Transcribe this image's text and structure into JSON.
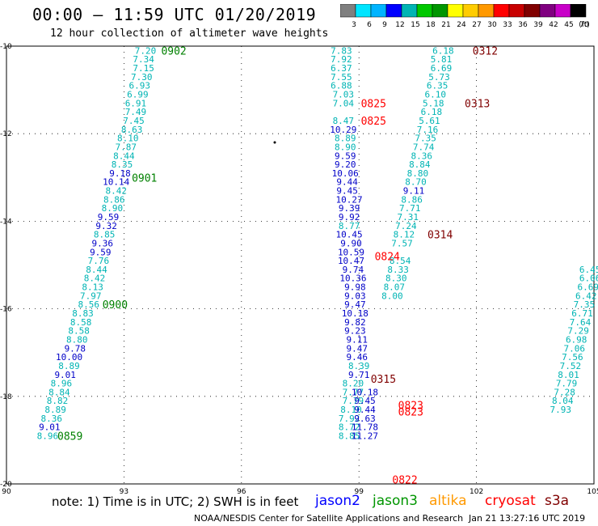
{
  "title": "00:00 – 11:59 UTC 01/20/2019",
  "subtitle": "12 hour collection of altimeter wave heights",
  "colorbar": {
    "labels": [
      "3",
      "6",
      "9",
      "12",
      "15",
      "18",
      "21",
      "24",
      "27",
      "30",
      "33",
      "36",
      "39",
      "42",
      "45",
      "70",
      "(ft)"
    ],
    "colors": [
      "#7f7f7f",
      "#00e5ff",
      "#00b4ff",
      "#0000ff",
      "#00b4b4",
      "#00c800",
      "#009600",
      "#ffff00",
      "#ffcc00",
      "#ff9900",
      "#ff0000",
      "#c80000",
      "#800000",
      "#800080",
      "#c800c8",
      "#000000"
    ]
  },
  "axes": {
    "lon_ticks": [
      "90",
      "93",
      "96",
      "99",
      "102",
      "105"
    ],
    "lat_ticks": [
      "-10",
      "-12",
      "-14",
      "-16",
      "-18",
      "-20"
    ],
    "lon_range": [
      90,
      105
    ],
    "lat_range": [
      -20,
      -10
    ]
  },
  "tracks": [
    {
      "satellite": "jason2",
      "passes": [
        {
          "time": "0902",
          "time_color": "#008000",
          "lat_start": -10.1,
          "lon_start": 93.6,
          "lat_end": -19.0,
          "lon_end": 90.4,
          "values": [
            "7.20",
            "7.34",
            "7.15",
            "7.30",
            "6.93",
            "6.99",
            "6.91",
            "7.49",
            "7.45",
            "8.63",
            "8.10",
            "7.87",
            "8.44",
            "8.35",
            "9.18",
            "10.14",
            "8.42",
            "8.86",
            "8.90",
            "9.59",
            "9.32",
            "8.85",
            "9.36",
            "9.59",
            "7.76",
            "8.44",
            "8.42",
            "8.13",
            "7.97",
            "8.56",
            "8.83",
            "8.58",
            "8.58",
            "8.80",
            "8.58",
            "8.89",
            "9.78",
            "10.00",
            "8.89",
            "9.01",
            "8.96",
            "8.90",
            "8.84",
            "8.82",
            "8.89",
            "8.43",
            "8.36",
            "9.01",
            "8.94",
            "8.96"
          ]
        },
        {
          "time": "0901",
          "time_color": "#008000"
        },
        {
          "time": "0900",
          "time_color": "#008000"
        },
        {
          "time": "0859",
          "time_color": "#008000"
        }
      ]
    },
    {
      "satellite": "jason3",
      "passes": [
        {
          "time": "0825",
          "time_color": "#ff0000"
        },
        {
          "time": "0825",
          "time_color": "#ff0000"
        },
        {
          "time": "0824",
          "time_color": "#ff0000"
        },
        {
          "time": "0823",
          "time_color": "#ff0000"
        },
        {
          "time": "0823",
          "time_color": "#ff0000"
        },
        {
          "time": "0822",
          "time_color": "#ff0000"
        }
      ]
    },
    {
      "satellite": "cryosat",
      "passes": [
        {
          "time": "0312",
          "time_color": "#800000"
        },
        {
          "time": "0313",
          "time_color": "#800000"
        },
        {
          "time": "0314",
          "time_color": "#800000"
        },
        {
          "time": "0315",
          "time_color": "#800000"
        }
      ]
    }
  ],
  "labels": [
    {
      "t": "7.20",
      "lat": -10.1,
      "lon": 93.55,
      "c": "#00b4b4"
    },
    {
      "t": "7.34",
      "lat": -10.3,
      "lon": 93.5,
      "c": "#00b4b4"
    },
    {
      "t": "7.15",
      "lat": -10.5,
      "lon": 93.5,
      "c": "#00b4b4"
    },
    {
      "t": "7.30",
      "lat": -10.7,
      "lon": 93.45,
      "c": "#00b4b4"
    },
    {
      "t": "6.93",
      "lat": -10.9,
      "lon": 93.4,
      "c": "#00b4b4"
    },
    {
      "t": "6.99",
      "lat": -11.1,
      "lon": 93.35,
      "c": "#00b4b4"
    },
    {
      "t": "6.91",
      "lat": -11.3,
      "lon": 93.3,
      "c": "#00b4b4"
    },
    {
      "t": "7.49",
      "lat": -11.5,
      "lon": 93.3,
      "c": "#00b4b4"
    },
    {
      "t": "7.45",
      "lat": -11.7,
      "lon": 93.25,
      "c": "#00b4b4"
    },
    {
      "t": "8.63",
      "lat": -11.9,
      "lon": 93.2,
      "c": "#00b4b4"
    },
    {
      "t": "8.10",
      "lat": -12.1,
      "lon": 93.1,
      "c": "#00b4b4"
    },
    {
      "t": "7.87",
      "lat": -12.3,
      "lon": 93.05,
      "c": "#00b4b4"
    },
    {
      "t": "8.44",
      "lat": -12.5,
      "lon": 93.0,
      "c": "#00b4b4"
    },
    {
      "t": "8.35",
      "lat": -12.7,
      "lon": 92.95,
      "c": "#00b4b4"
    },
    {
      "t": "9.18",
      "lat": -12.9,
      "lon": 92.9,
      "c": "#0000c8"
    },
    {
      "t": "10.14",
      "lat": -13.1,
      "lon": 92.8,
      "c": "#0000c8"
    },
    {
      "t": "8.42",
      "lat": -13.3,
      "lon": 92.8,
      "c": "#00b4b4"
    },
    {
      "t": "8.86",
      "lat": -13.5,
      "lon": 92.75,
      "c": "#00b4b4"
    },
    {
      "t": "8.90",
      "lat": -13.7,
      "lon": 92.7,
      "c": "#00b4b4"
    },
    {
      "t": "9.59",
      "lat": -13.9,
      "lon": 92.6,
      "c": "#0000c8"
    },
    {
      "t": "9.32",
      "lat": -14.1,
      "lon": 92.55,
      "c": "#0000c8"
    },
    {
      "t": "8.85",
      "lat": -14.3,
      "lon": 92.5,
      "c": "#00b4b4"
    },
    {
      "t": "9.36",
      "lat": -14.5,
      "lon": 92.45,
      "c": "#0000c8"
    },
    {
      "t": "9.59",
      "lat": -14.7,
      "lon": 92.4,
      "c": "#0000c8"
    },
    {
      "t": "7.76",
      "lat": -14.9,
      "lon": 92.35,
      "c": "#00b4b4"
    },
    {
      "t": "8.44",
      "lat": -15.1,
      "lon": 92.3,
      "c": "#00b4b4"
    },
    {
      "t": "8.42",
      "lat": -15.3,
      "lon": 92.25,
      "c": "#00b4b4"
    },
    {
      "t": "8.13",
      "lat": -15.5,
      "lon": 92.2,
      "c": "#00b4b4"
    },
    {
      "t": "7.97",
      "lat": -15.7,
      "lon": 92.15,
      "c": "#00b4b4"
    },
    {
      "t": "8.56",
      "lat": -15.9,
      "lon": 92.1,
      "c": "#00b4b4"
    },
    {
      "t": "8.83",
      "lat": -16.1,
      "lon": 91.95,
      "c": "#00b4b4"
    },
    {
      "t": "8.58",
      "lat": -16.3,
      "lon": 91.9,
      "c": "#00b4b4"
    },
    {
      "t": "8.58",
      "lat": -16.5,
      "lon": 91.85,
      "c": "#00b4b4"
    },
    {
      "t": "8.80",
      "lat": -16.7,
      "lon": 91.8,
      "c": "#00b4b4"
    },
    {
      "t": "9.78",
      "lat": -16.9,
      "lon": 91.75,
      "c": "#0000c8"
    },
    {
      "t": "10.00",
      "lat": -17.1,
      "lon": 91.6,
      "c": "#0000c8"
    },
    {
      "t": "8.89",
      "lat": -17.3,
      "lon": 91.6,
      "c": "#00b4b4"
    },
    {
      "t": "9.01",
      "lat": -17.5,
      "lon": 91.5,
      "c": "#0000c8"
    },
    {
      "t": "8.96",
      "lat": -17.7,
      "lon": 91.4,
      "c": "#00b4b4"
    },
    {
      "t": "8.84",
      "lat": -17.9,
      "lon": 91.35,
      "c": "#00b4b4"
    },
    {
      "t": "8.82",
      "lat": -18.1,
      "lon": 91.3,
      "c": "#00b4b4"
    },
    {
      "t": "8.89",
      "lat": -18.3,
      "lon": 91.25,
      "c": "#00b4b4"
    },
    {
      "t": "8.36",
      "lat": -18.5,
      "lon": 91.15,
      "c": "#00b4b4"
    },
    {
      "t": "9.01",
      "lat": -18.7,
      "lon": 91.1,
      "c": "#0000c8"
    },
    {
      "t": "8.96",
      "lat": -18.9,
      "lon": 91.05,
      "c": "#00b4b4"
    },
    {
      "t": "7.83",
      "lat": -10.1,
      "lon": 98.55,
      "c": "#00b4b4"
    },
    {
      "t": "7.92",
      "lat": -10.3,
      "lon": 98.55,
      "c": "#00b4b4"
    },
    {
      "t": "6.37",
      "lat": -10.5,
      "lon": 98.55,
      "c": "#00b4b4"
    },
    {
      "t": "7.55",
      "lat": -10.7,
      "lon": 98.55,
      "c": "#00b4b4"
    },
    {
      "t": "6.88",
      "lat": -10.9,
      "lon": 98.55,
      "c": "#00b4b4"
    },
    {
      "t": "7.03",
      "lat": -11.1,
      "lon": 98.6,
      "c": "#00b4b4"
    },
    {
      "t": "7.04",
      "lat": -11.3,
      "lon": 98.6,
      "c": "#00b4b4"
    },
    {
      "t": "8.47",
      "lat": -11.7,
      "lon": 98.6,
      "c": "#00b4b4"
    },
    {
      "t": "10.29",
      "lat": -11.9,
      "lon": 98.6,
      "c": "#0000c8"
    },
    {
      "t": "8.89",
      "lat": -12.1,
      "lon": 98.65,
      "c": "#00b4b4"
    },
    {
      "t": "8.90",
      "lat": -12.3,
      "lon": 98.65,
      "c": "#00b4b4"
    },
    {
      "t": "9.59",
      "lat": -12.5,
      "lon": 98.65,
      "c": "#0000c8"
    },
    {
      "t": "9.20",
      "lat": -12.7,
      "lon": 98.65,
      "c": "#0000c8"
    },
    {
      "t": "10.06",
      "lat": -12.9,
      "lon": 98.65,
      "c": "#0000c8"
    },
    {
      "t": "9.44",
      "lat": -13.1,
      "lon": 98.7,
      "c": "#0000c8"
    },
    {
      "t": "9.45",
      "lat": -13.3,
      "lon": 98.7,
      "c": "#0000c8"
    },
    {
      "t": "10.27",
      "lat": -13.5,
      "lon": 98.75,
      "c": "#0000c8"
    },
    {
      "t": "9.39",
      "lat": -13.7,
      "lon": 98.75,
      "c": "#0000c8"
    },
    {
      "t": "9.92",
      "lat": -13.9,
      "lon": 98.75,
      "c": "#0000c8"
    },
    {
      "t": "8.77",
      "lat": -14.1,
      "lon": 98.75,
      "c": "#00b4b4"
    },
    {
      "t": "10.45",
      "lat": -14.3,
      "lon": 98.75,
      "c": "#0000c8"
    },
    {
      "t": "9.90",
      "lat": -14.5,
      "lon": 98.8,
      "c": "#0000c8"
    },
    {
      "t": "10.59",
      "lat": -14.7,
      "lon": 98.8,
      "c": "#0000c8"
    },
    {
      "t": "10.47",
      "lat": -14.9,
      "lon": 98.8,
      "c": "#0000c8"
    },
    {
      "t": "9.74",
      "lat": -15.1,
      "lon": 98.85,
      "c": "#0000c8"
    },
    {
      "t": "10.36",
      "lat": -15.3,
      "lon": 98.85,
      "c": "#0000c8"
    },
    {
      "t": "9.98",
      "lat": -15.5,
      "lon": 98.9,
      "c": "#0000c8"
    },
    {
      "t": "9.03",
      "lat": -15.7,
      "lon": 98.9,
      "c": "#0000c8"
    },
    {
      "t": "9.47",
      "lat": -15.9,
      "lon": 98.9,
      "c": "#0000c8"
    },
    {
      "t": "10.18",
      "lat": -16.1,
      "lon": 98.9,
      "c": "#0000c8"
    },
    {
      "t": "9.82",
      "lat": -16.3,
      "lon": 98.9,
      "c": "#0000c8"
    },
    {
      "t": "9.23",
      "lat": -16.5,
      "lon": 98.9,
      "c": "#0000c8"
    },
    {
      "t": "9.11",
      "lat": -16.7,
      "lon": 98.95,
      "c": "#0000c8"
    },
    {
      "t": "9.47",
      "lat": -16.9,
      "lon": 98.95,
      "c": "#0000c8"
    },
    {
      "t": "9.46",
      "lat": -17.1,
      "lon": 98.95,
      "c": "#0000c8"
    },
    {
      "t": "8.39",
      "lat": -17.3,
      "lon": 99.0,
      "c": "#00b4b4"
    },
    {
      "t": "9.71",
      "lat": -17.5,
      "lon": 99.0,
      "c": "#0000c8"
    },
    {
      "t": "8.20",
      "lat": -17.7,
      "lon": 98.85,
      "c": "#00b4b4"
    },
    {
      "t": "7.77",
      "lat": -17.9,
      "lon": 98.85,
      "c": "#00b4b4"
    },
    {
      "t": "10.18",
      "lat": -17.9,
      "lon": 99.15,
      "c": "#0000c8"
    },
    {
      "t": "7.79",
      "lat": -18.1,
      "lon": 98.85,
      "c": "#00b4b4"
    },
    {
      "t": "9.45",
      "lat": -18.1,
      "lon": 99.15,
      "c": "#0000c8"
    },
    {
      "t": "8.10",
      "lat": -18.3,
      "lon": 98.8,
      "c": "#00b4b4"
    },
    {
      "t": "9.44",
      "lat": -18.3,
      "lon": 99.15,
      "c": "#0000c8"
    },
    {
      "t": "7.92",
      "lat": -18.5,
      "lon": 98.75,
      "c": "#00b4b4"
    },
    {
      "t": "9.63",
      "lat": -18.5,
      "lon": 99.15,
      "c": "#0000c8"
    },
    {
      "t": "8.72",
      "lat": -18.7,
      "lon": 98.75,
      "c": "#00b4b4"
    },
    {
      "t": "11.78",
      "lat": -18.7,
      "lon": 99.15,
      "c": "#0000c8"
    },
    {
      "t": "8.85",
      "lat": -18.9,
      "lon": 98.75,
      "c": "#00b4b4"
    },
    {
      "t": "11.27",
      "lat": -18.9,
      "lon": 99.15,
      "c": "#0000c8"
    },
    {
      "t": "6.18",
      "lat": -10.1,
      "lon": 101.15,
      "c": "#00b4b4"
    },
    {
      "t": "5.81",
      "lat": -10.3,
      "lon": 101.1,
      "c": "#00b4b4"
    },
    {
      "t": "6.69",
      "lat": -10.5,
      "lon": 101.1,
      "c": "#00b4b4"
    },
    {
      "t": "5.73",
      "lat": -10.7,
      "lon": 101.05,
      "c": "#00b4b4"
    },
    {
      "t": "6.35",
      "lat": -10.9,
      "lon": 101.0,
      "c": "#00b4b4"
    },
    {
      "t": "6.10",
      "lat": -11.1,
      "lon": 100.95,
      "c": "#00b4b4"
    },
    {
      "t": "5.18",
      "lat": -11.3,
      "lon": 100.9,
      "c": "#00b4b4"
    },
    {
      "t": "6.18",
      "lat": -11.5,
      "lon": 100.85,
      "c": "#00b4b4"
    },
    {
      "t": "5.61",
      "lat": -11.7,
      "lon": 100.8,
      "c": "#00b4b4"
    },
    {
      "t": "7.16",
      "lat": -11.9,
      "lon": 100.75,
      "c": "#00b4b4"
    },
    {
      "t": "7.35",
      "lat": -12.1,
      "lon": 100.7,
      "c": "#00b4b4"
    },
    {
      "t": "7.74",
      "lat": -12.3,
      "lon": 100.65,
      "c": "#00b4b4"
    },
    {
      "t": "8.36",
      "lat": -12.5,
      "lon": 100.6,
      "c": "#00b4b4"
    },
    {
      "t": "8.84",
      "lat": -12.7,
      "lon": 100.55,
      "c": "#00b4b4"
    },
    {
      "t": "8.80",
      "lat": -12.9,
      "lon": 100.5,
      "c": "#00b4b4"
    },
    {
      "t": "8.70",
      "lat": -13.1,
      "lon": 100.45,
      "c": "#00b4b4"
    },
    {
      "t": "9.11",
      "lat": -13.3,
      "lon": 100.4,
      "c": "#0000c8"
    },
    {
      "t": "8.86",
      "lat": -13.5,
      "lon": 100.35,
      "c": "#00b4b4"
    },
    {
      "t": "7.71",
      "lat": -13.7,
      "lon": 100.3,
      "c": "#00b4b4"
    },
    {
      "t": "7.31",
      "lat": -13.9,
      "lon": 100.25,
      "c": "#00b4b4"
    },
    {
      "t": "7.24",
      "lat": -14.1,
      "lon": 100.2,
      "c": "#00b4b4"
    },
    {
      "t": "8.12",
      "lat": -14.3,
      "lon": 100.15,
      "c": "#00b4b4"
    },
    {
      "t": "7.57",
      "lat": -14.5,
      "lon": 100.1,
      "c": "#00b4b4"
    },
    {
      "t": "8.54",
      "lat": -14.9,
      "lon": 100.05,
      "c": "#00b4b4"
    },
    {
      "t": "8.33",
      "lat": -15.1,
      "lon": 100.0,
      "c": "#00b4b4"
    },
    {
      "t": "8.30",
      "lat": -15.3,
      "lon": 99.95,
      "c": "#00b4b4"
    },
    {
      "t": "8.07",
      "lat": -15.5,
      "lon": 99.9,
      "c": "#00b4b4"
    },
    {
      "t": "8.00",
      "lat": -15.7,
      "lon": 99.85,
      "c": "#00b4b4"
    },
    {
      "t": "6.45",
      "lat": -15.1,
      "lon": 104.9,
      "c": "#00b4b4"
    },
    {
      "t": "6.06",
      "lat": -15.3,
      "lon": 104.9,
      "c": "#00b4b4"
    },
    {
      "t": "6.69",
      "lat": -15.5,
      "lon": 104.85,
      "c": "#00b4b4"
    },
    {
      "t": "6.42",
      "lat": -15.7,
      "lon": 104.8,
      "c": "#00b4b4"
    },
    {
      "t": "7.35",
      "lat": -15.9,
      "lon": 104.75,
      "c": "#00b4b4"
    },
    {
      "t": "6.71",
      "lat": -16.1,
      "lon": 104.7,
      "c": "#00b4b4"
    },
    {
      "t": "7.64",
      "lat": -16.3,
      "lon": 104.65,
      "c": "#00b4b4"
    },
    {
      "t": "7.29",
      "lat": -16.5,
      "lon": 104.6,
      "c": "#00b4b4"
    },
    {
      "t": "6.98",
      "lat": -16.7,
      "lon": 104.55,
      "c": "#00b4b4"
    },
    {
      "t": "7.06",
      "lat": -16.9,
      "lon": 104.5,
      "c": "#00b4b4"
    },
    {
      "t": "7.56",
      "lat": -17.1,
      "lon": 104.45,
      "c": "#00b4b4"
    },
    {
      "t": "7.52",
      "lat": -17.3,
      "lon": 104.4,
      "c": "#00b4b4"
    },
    {
      "t": "8.01",
      "lat": -17.5,
      "lon": 104.35,
      "c": "#00b4b4"
    },
    {
      "t": "7.79",
      "lat": -17.7,
      "lon": 104.3,
      "c": "#00b4b4"
    },
    {
      "t": "7.28",
      "lat": -17.9,
      "lon": 104.25,
      "c": "#00b4b4"
    },
    {
      "t": "8.04",
      "lat": -18.1,
      "lon": 104.2,
      "c": "#00b4b4"
    },
    {
      "t": "7.93",
      "lat": -18.3,
      "lon": 104.15,
      "c": "#00b4b4"
    }
  ],
  "time_marks": [
    {
      "t": "0902",
      "lat": -10.1,
      "lon": 93.95,
      "c": "#008000"
    },
    {
      "t": "0901",
      "lat": -13.0,
      "lon": 93.2,
      "c": "#008000"
    },
    {
      "t": "0900",
      "lat": -15.9,
      "lon": 92.45,
      "c": "#008000"
    },
    {
      "t": "0859",
      "lat": -18.9,
      "lon": 91.3,
      "c": "#008000"
    },
    {
      "t": "0825",
      "lat": -11.3,
      "lon": 99.05,
      "c": "#ff0000"
    },
    {
      "t": "0825",
      "lat": -11.7,
      "lon": 99.05,
      "c": "#ff0000"
    },
    {
      "t": "0824",
      "lat": -14.8,
      "lon": 99.4,
      "c": "#ff0000"
    },
    {
      "t": "0823",
      "lat": -18.2,
      "lon": 100.0,
      "c": "#ff0000"
    },
    {
      "t": "0823",
      "lat": -18.35,
      "lon": 100.0,
      "c": "#ff0000"
    },
    {
      "t": "0822",
      "lat": -19.9,
      "lon": 99.85,
      "c": "#ff0000"
    },
    {
      "t": "0312",
      "lat": -10.1,
      "lon": 101.9,
      "c": "#800000"
    },
    {
      "t": "0313",
      "lat": -11.3,
      "lon": 101.7,
      "c": "#800000"
    },
    {
      "t": "0314",
      "lat": -14.3,
      "lon": 100.75,
      "c": "#800000"
    },
    {
      "t": "0315",
      "lat": -17.6,
      "lon": 99.3,
      "c": "#800000"
    }
  ],
  "legend": {
    "note": "note: 1) Time is in UTC; 2) SWH is in feet",
    "items": [
      {
        "name": "jason2",
        "color": "#0000ff"
      },
      {
        "name": "jason3",
        "color": "#009600"
      },
      {
        "name": "altika",
        "color": "#ff9900"
      },
      {
        "name": "cryosat",
        "color": "#ff0000"
      },
      {
        "name": "s3a",
        "color": "#800000"
      }
    ]
  },
  "credit": "NOAA/NESDIS Center for Satellite Applications and Research",
  "credit_time": "Jan 21 13:27:16 UTC 2019"
}
